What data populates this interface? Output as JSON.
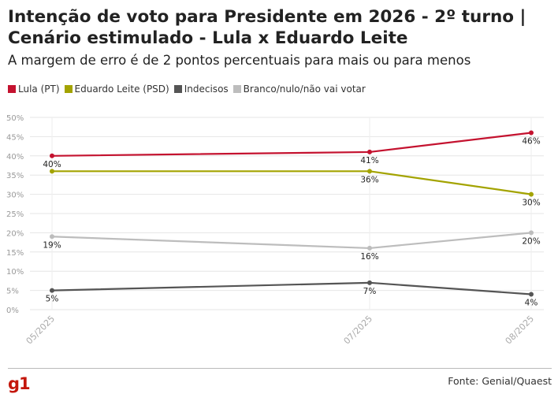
{
  "header": {
    "title": "Intenção de voto para Presidente em 2026 - 2º turno | Cenário estimulado - Lula x Eduardo Leite",
    "subtitle": "A margem de erro é de 2 pontos percentuais para mais ou para menos"
  },
  "footer": {
    "logo_text": "g1",
    "source": "Fonte: Genial/Quaest"
  },
  "chart_data": {
    "type": "line",
    "x": [
      "05/2025",
      "07/2025",
      "08/2025"
    ],
    "ylim": [
      0,
      50
    ],
    "yticks": [
      "0%",
      "5%",
      "10%",
      "15%",
      "20%",
      "25%",
      "30%",
      "35%",
      "40%",
      "45%",
      "50%"
    ],
    "grid": true,
    "legend_position": "top-left",
    "series": [
      {
        "name": "Lula (PT)",
        "color": "#c4122f",
        "values": [
          40,
          41,
          46
        ],
        "labels": [
          "40%",
          "41%",
          "46%"
        ]
      },
      {
        "name": "Eduardo Leite (PSD)",
        "color": "#a3a300",
        "values": [
          36,
          36,
          30
        ],
        "labels": [
          "",
          "36%",
          "30%"
        ]
      },
      {
        "name": "Indecisos",
        "color": "#555555",
        "values": [
          5,
          7,
          4
        ],
        "labels": [
          "5%",
          "7%",
          "4%"
        ]
      },
      {
        "name": "Branco/nulo/não vai votar",
        "color": "#bdbdbd",
        "values": [
          19,
          16,
          20
        ],
        "labels": [
          "19%",
          "16%",
          "20%"
        ]
      }
    ]
  }
}
